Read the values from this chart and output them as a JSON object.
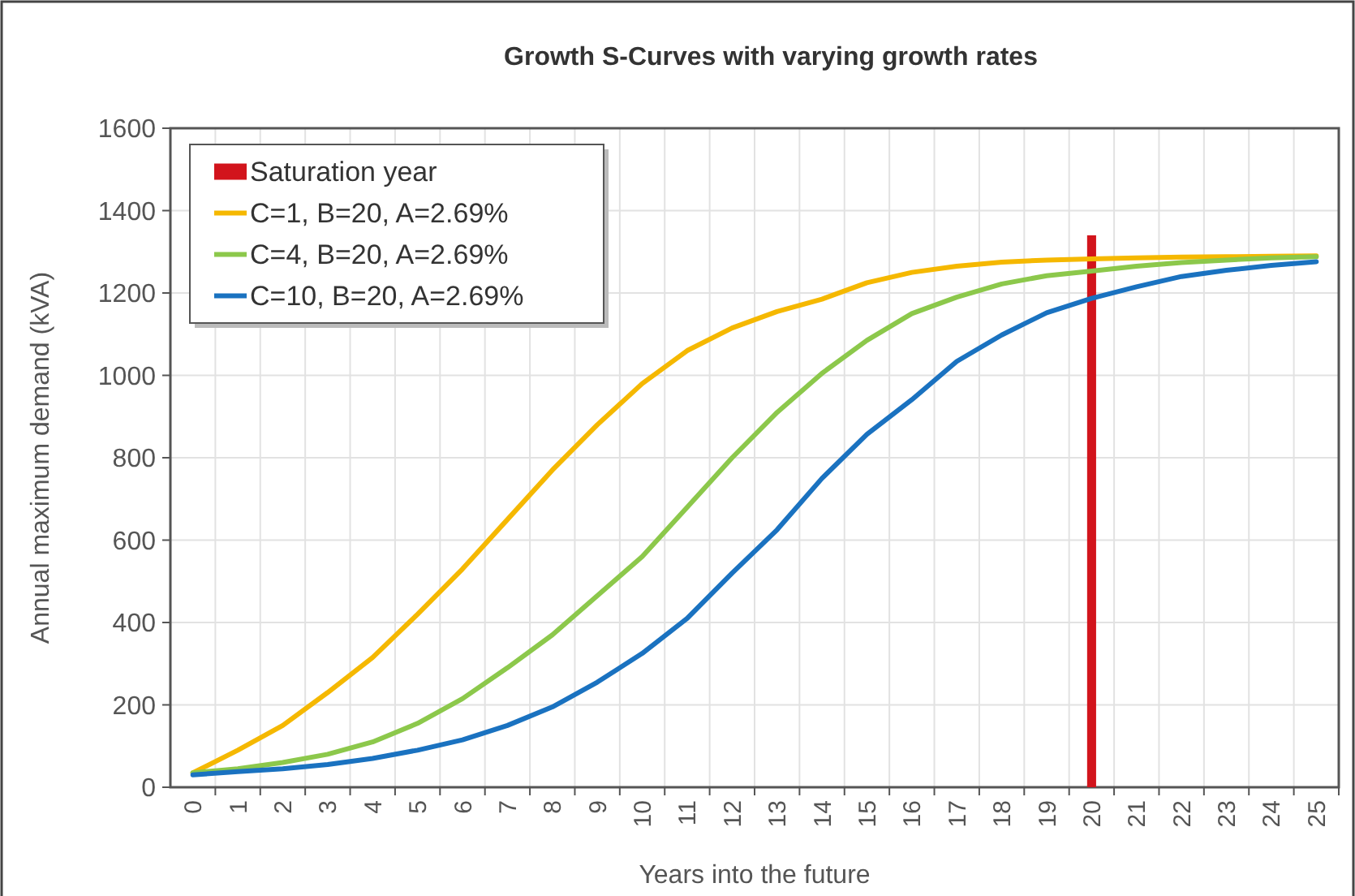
{
  "chart_data": {
    "type": "line",
    "title": "Growth S-Curves with varying growth rates",
    "xlabel": "Years into the future",
    "ylabel": "Annual maximum demand (kVA)",
    "categories": [
      "0",
      "1",
      "2",
      "3",
      "4",
      "5",
      "6",
      "7",
      "8",
      "9",
      "10",
      "11",
      "12",
      "13",
      "14",
      "15",
      "16",
      "17",
      "18",
      "19",
      "20",
      "21",
      "22",
      "23",
      "24",
      "25"
    ],
    "series": [
      {
        "name": "Saturation year",
        "type": "bar",
        "color": "#d2141c",
        "values": [
          null,
          null,
          null,
          null,
          null,
          null,
          null,
          null,
          null,
          null,
          null,
          null,
          null,
          null,
          null,
          null,
          null,
          null,
          null,
          null,
          1340,
          null,
          null,
          null,
          null,
          null
        ]
      },
      {
        "name": "C=1, B=20, A=2.69%",
        "color": "#f5b800",
        "values": [
          35,
          90,
          150,
          230,
          315,
          420,
          530,
          650,
          770,
          880,
          980,
          1060,
          1115,
          1155,
          1185,
          1225,
          1250,
          1265,
          1275,
          1280,
          1283,
          1285,
          1287,
          1288,
          1289,
          1290
        ]
      },
      {
        "name": "C=4, B=20, A=2.69%",
        "color": "#8cc84b",
        "values": [
          35,
          45,
          60,
          80,
          110,
          155,
          215,
          290,
          370,
          465,
          560,
          680,
          800,
          910,
          1005,
          1085,
          1150,
          1190,
          1222,
          1242,
          1253,
          1265,
          1274,
          1280,
          1285,
          1288
        ]
      },
      {
        "name": "C=10, B=20, A=2.69%",
        "color": "#1a72c0",
        "values": [
          30,
          38,
          45,
          55,
          70,
          90,
          115,
          150,
          195,
          255,
          325,
          410,
          520,
          625,
          750,
          857,
          941,
          1034,
          1098,
          1152,
          1187,
          1215,
          1240,
          1255,
          1267,
          1276
        ]
      }
    ],
    "ylim": [
      0,
      1600
    ],
    "yticks": [
      0,
      200,
      400,
      600,
      800,
      1000,
      1200,
      1400,
      1600
    ],
    "grid": true,
    "legend": "top left",
    "marker": "none",
    "line_style": "solid"
  }
}
